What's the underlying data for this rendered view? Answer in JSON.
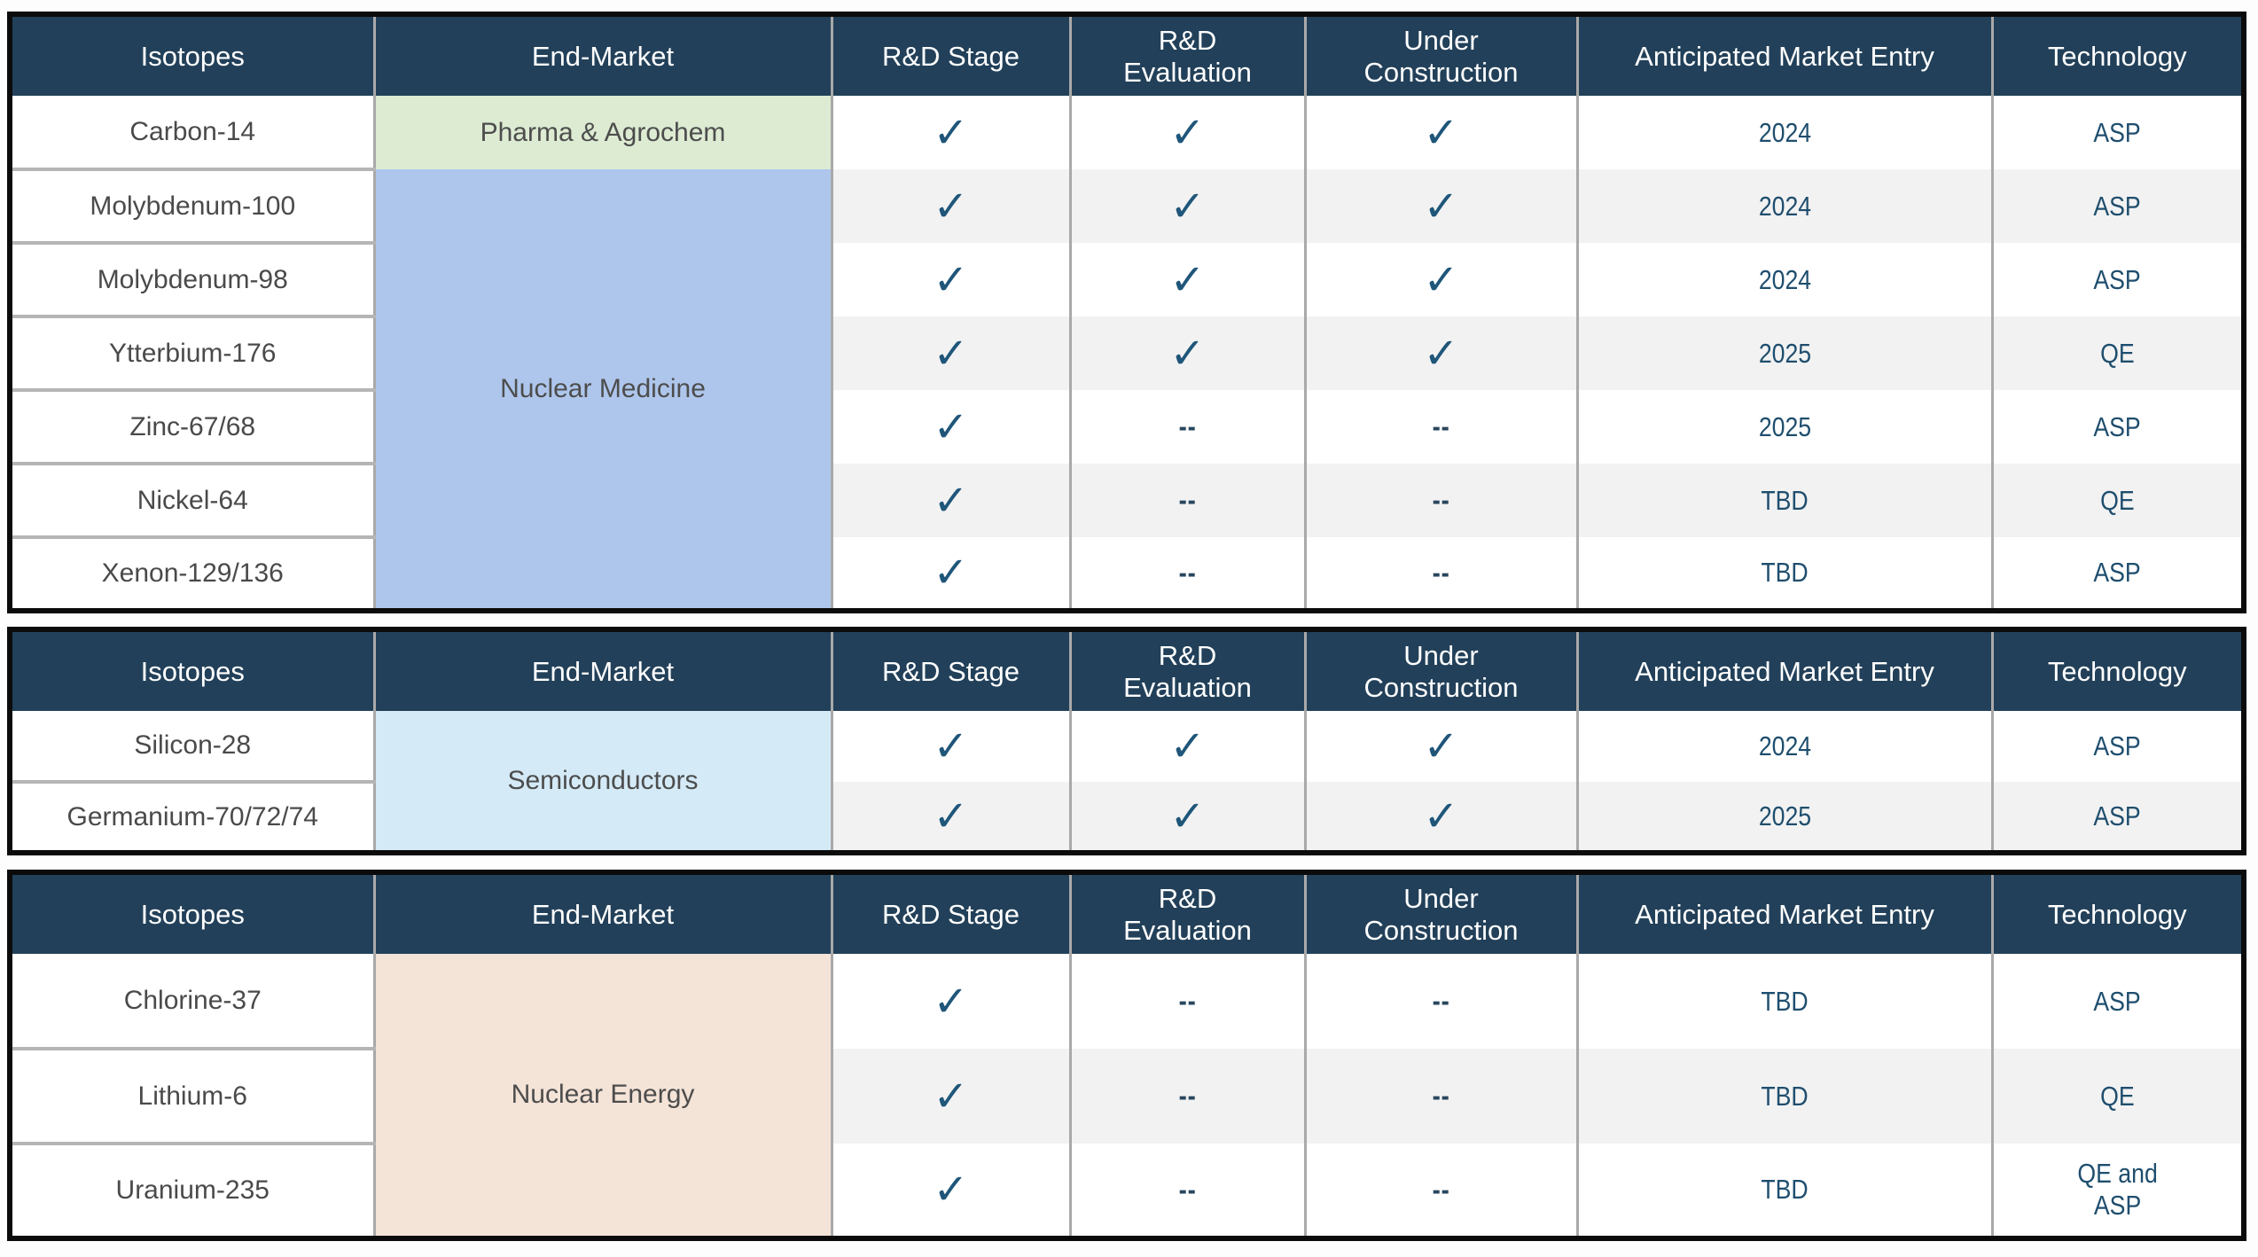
{
  "palette": {
    "header_bg": "#224059",
    "header_text": "#ffffff",
    "stripe_bg": "#f2f2f2",
    "row_bg": "#ffffff",
    "value_text": "#1f4e6e",
    "check_color": "#1f567a",
    "label_text": "#4a4a4a",
    "table_border": "#0b0b0b",
    "divider_gray": "#a9a9a9"
  },
  "glyphs": {
    "check": "✓",
    "dash": "--"
  },
  "column_headers": [
    "Isotopes",
    "End-Market",
    "R&D Stage",
    "R&D\nEvaluation",
    "Under\nConstruction",
    "Anticipated Market Entry",
    "Technology"
  ],
  "tables": [
    {
      "name": "pharma-and-nuclear-medicine-table",
      "groups": [
        {
          "end_market": "Pharma & Agrochem",
          "color": "#dcebd2",
          "rows": [
            {
              "isotope": "Carbon-14",
              "rd_stage": "✓",
              "rd_evaluation": "✓",
              "under_construction": "✓",
              "market_entry": "2024",
              "technology": "ASP"
            }
          ]
        },
        {
          "end_market": "Nuclear Medicine",
          "color": "#aec6ec",
          "rows": [
            {
              "isotope": "Molybdenum-100",
              "rd_stage": "✓",
              "rd_evaluation": "✓",
              "under_construction": "✓",
              "market_entry": "2024",
              "technology": "ASP"
            },
            {
              "isotope": "Molybdenum-98",
              "rd_stage": "✓",
              "rd_evaluation": "✓",
              "under_construction": "✓",
              "market_entry": "2024",
              "technology": "ASP"
            },
            {
              "isotope": "Ytterbium-176",
              "rd_stage": "✓",
              "rd_evaluation": "✓",
              "under_construction": "✓",
              "market_entry": "2025",
              "technology": "QE"
            },
            {
              "isotope": "Zinc-67/68",
              "rd_stage": "✓",
              "rd_evaluation": "--",
              "under_construction": "--",
              "market_entry": "2025",
              "technology": "ASP"
            },
            {
              "isotope": "Nickel-64",
              "rd_stage": "✓",
              "rd_evaluation": "--",
              "under_construction": "--",
              "market_entry": "TBD",
              "technology": "QE"
            },
            {
              "isotope": "Xenon-129/136",
              "rd_stage": "✓",
              "rd_evaluation": "--",
              "under_construction": "--",
              "market_entry": "TBD",
              "technology": "ASP"
            }
          ]
        }
      ]
    },
    {
      "name": "semiconductors-table",
      "groups": [
        {
          "end_market": "Semiconductors",
          "color": "#d4eaf7",
          "rows": [
            {
              "isotope": "Silicon-28",
              "rd_stage": "✓",
              "rd_evaluation": "✓",
              "under_construction": "✓",
              "market_entry": "2024",
              "technology": "ASP"
            },
            {
              "isotope": "Germanium-70/72/74",
              "rd_stage": "✓",
              "rd_evaluation": "✓",
              "under_construction": "✓",
              "market_entry": "2025",
              "technology": "ASP"
            }
          ]
        }
      ]
    },
    {
      "name": "nuclear-energy-table",
      "groups": [
        {
          "end_market": "Nuclear Energy",
          "color": "#f4e3d7",
          "rows": [
            {
              "isotope": "Chlorine-37",
              "rd_stage": "✓",
              "rd_evaluation": "--",
              "under_construction": "--",
              "market_entry": "TBD",
              "technology": "ASP"
            },
            {
              "isotope": "Lithium-6",
              "rd_stage": "✓",
              "rd_evaluation": "--",
              "under_construction": "--",
              "market_entry": "TBD",
              "technology": "QE"
            },
            {
              "isotope": "Uranium-235",
              "rd_stage": "✓",
              "rd_evaluation": "--",
              "under_construction": "--",
              "market_entry": "TBD",
              "technology": "QE and\nASP"
            }
          ]
        }
      ]
    }
  ]
}
